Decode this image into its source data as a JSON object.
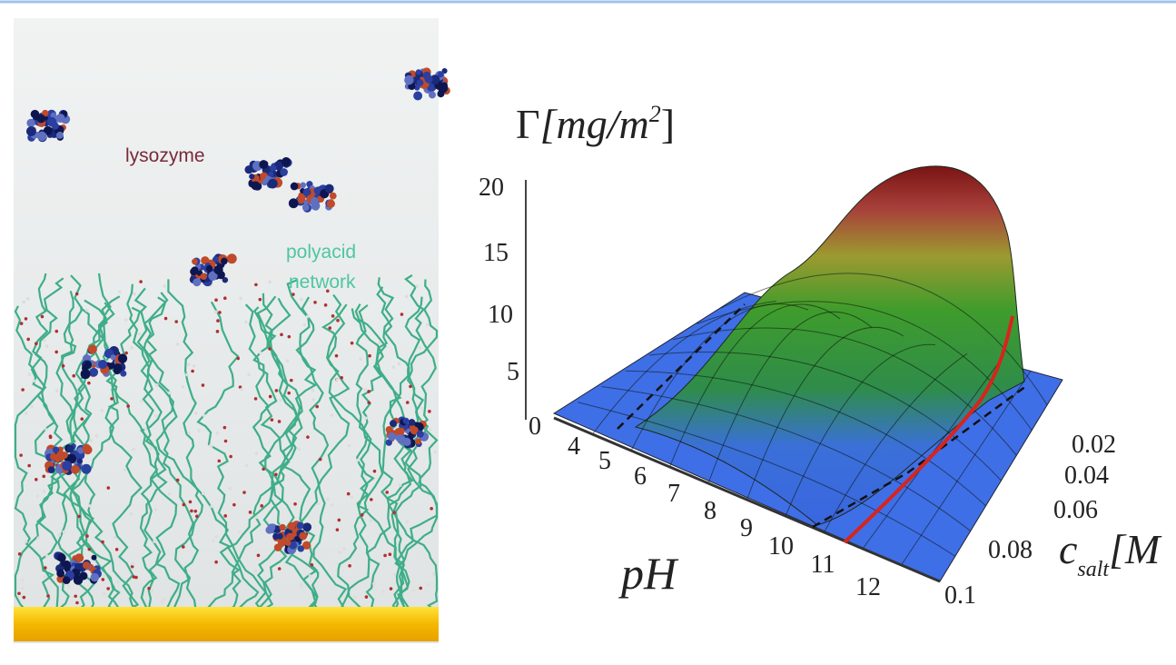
{
  "left_panel": {
    "labels": {
      "protein": "lysozyme",
      "network_line1": "polyacid",
      "network_line2": "network"
    }
  },
  "right_panel": {
    "z_axis": {
      "label_symbol": "Γ",
      "label_units": "[mg/m",
      "label_power": "2",
      "label_close": "]",
      "ticks": [
        "0",
        "5",
        "10",
        "15",
        "20"
      ]
    },
    "ph_axis": {
      "label": "pH",
      "ticks": [
        "4",
        "5",
        "6",
        "7",
        "8",
        "9",
        "10",
        "11",
        "12"
      ]
    },
    "salt_axis": {
      "label_symbol": "c",
      "label_subscript": "salt",
      "label_units": "[M",
      "ticks": [
        "0.02",
        "0.04",
        "0.06",
        "0.08",
        "0.1"
      ]
    }
  }
}
